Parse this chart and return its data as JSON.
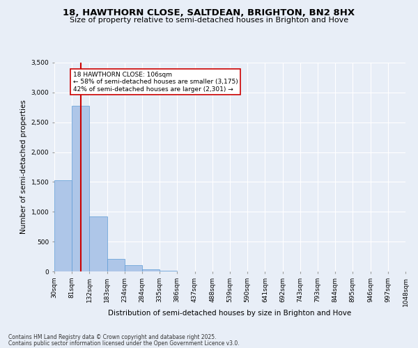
{
  "title": "18, HAWTHORN CLOSE, SALTDEAN, BRIGHTON, BN2 8HX",
  "subtitle": "Size of property relative to semi-detached houses in Brighton and Hove",
  "xlabel": "Distribution of semi-detached houses by size in Brighton and Hove",
  "ylabel": "Number of semi-detached properties",
  "footnote1": "Contains HM Land Registry data © Crown copyright and database right 2025.",
  "footnote2": "Contains public sector information licensed under the Open Government Licence v3.0.",
  "bin_labels": [
    "30sqm",
    "81sqm",
    "132sqm",
    "183sqm",
    "234sqm",
    "284sqm",
    "335sqm",
    "386sqm",
    "437sqm",
    "488sqm",
    "539sqm",
    "590sqm",
    "641sqm",
    "692sqm",
    "743sqm",
    "793sqm",
    "844sqm",
    "895sqm",
    "946sqm",
    "997sqm",
    "1048sqm"
  ],
  "bin_edges": [
    30,
    81,
    132,
    183,
    234,
    284,
    335,
    386,
    437,
    488,
    539,
    590,
    641,
    692,
    743,
    793,
    844,
    895,
    946,
    997,
    1048
  ],
  "bar_values": [
    1530,
    2780,
    920,
    210,
    105,
    30,
    15,
    3,
    0,
    0,
    0,
    0,
    0,
    0,
    0,
    0,
    0,
    0,
    0,
    0
  ],
  "bar_color": "#aec6e8",
  "bar_edge_color": "#5b9bd5",
  "property_size": 106,
  "pct_smaller": 58,
  "pct_larger": 42,
  "count_smaller": 3175,
  "count_larger": 2301,
  "vline_color": "#cc0000",
  "annotation_box_color": "#cc0000",
  "ylim": [
    0,
    3500
  ],
  "yticks": [
    0,
    500,
    1000,
    1500,
    2000,
    2500,
    3000,
    3500
  ],
  "background_color": "#e8eef7",
  "grid_color": "#ffffff",
  "title_fontsize": 9.5,
  "subtitle_fontsize": 8.0,
  "xlabel_fontsize": 7.5,
  "ylabel_fontsize": 7.5,
  "tick_fontsize": 6.5,
  "annot_fontsize": 6.5,
  "footnote_fontsize": 5.5
}
